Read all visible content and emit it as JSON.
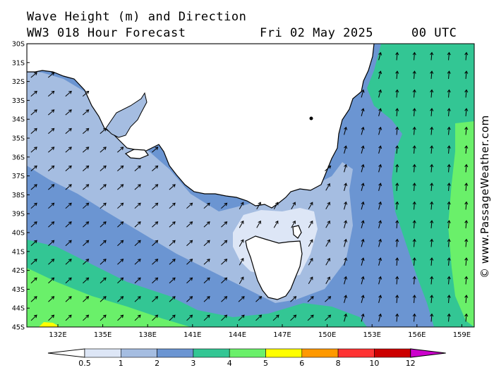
{
  "header": {
    "title": "Wave Height (m) and Direction",
    "subtitle": "WW3 018 Hour Forecast",
    "date": "Fri 02 May 2025",
    "time": "00 UTC"
  },
  "credit": "© www.PassageWeather.com",
  "map": {
    "lat_labels": [
      "30S",
      "31S",
      "32S",
      "33S",
      "34S",
      "35S",
      "36S",
      "37S",
      "38S",
      "39S",
      "40S",
      "41S",
      "42S",
      "43S",
      "44S",
      "45S"
    ],
    "lon_labels": [
      "132E",
      "135E",
      "138E",
      "141E",
      "144E",
      "147E",
      "150E",
      "153E",
      "156E",
      "159E"
    ],
    "colors": {
      "land": "#ffffff",
      "c05_1": "#dde6f6",
      "c1_2": "#a5bde1",
      "c2_3": "#6b95d2",
      "c3_4": "#33c694",
      "c4_5": "#6af06a",
      "c5_6": "#ffff00",
      "c6_8": "#ff9900",
      "c8_10": "#ff3333",
      "c10_12": "#cc0000",
      "c12_plus": "#cc00cc"
    }
  },
  "colorbar": {
    "labels": [
      "0.5",
      "1",
      "2",
      "3",
      "4",
      "5",
      "6",
      "8",
      "10",
      "12"
    ]
  }
}
